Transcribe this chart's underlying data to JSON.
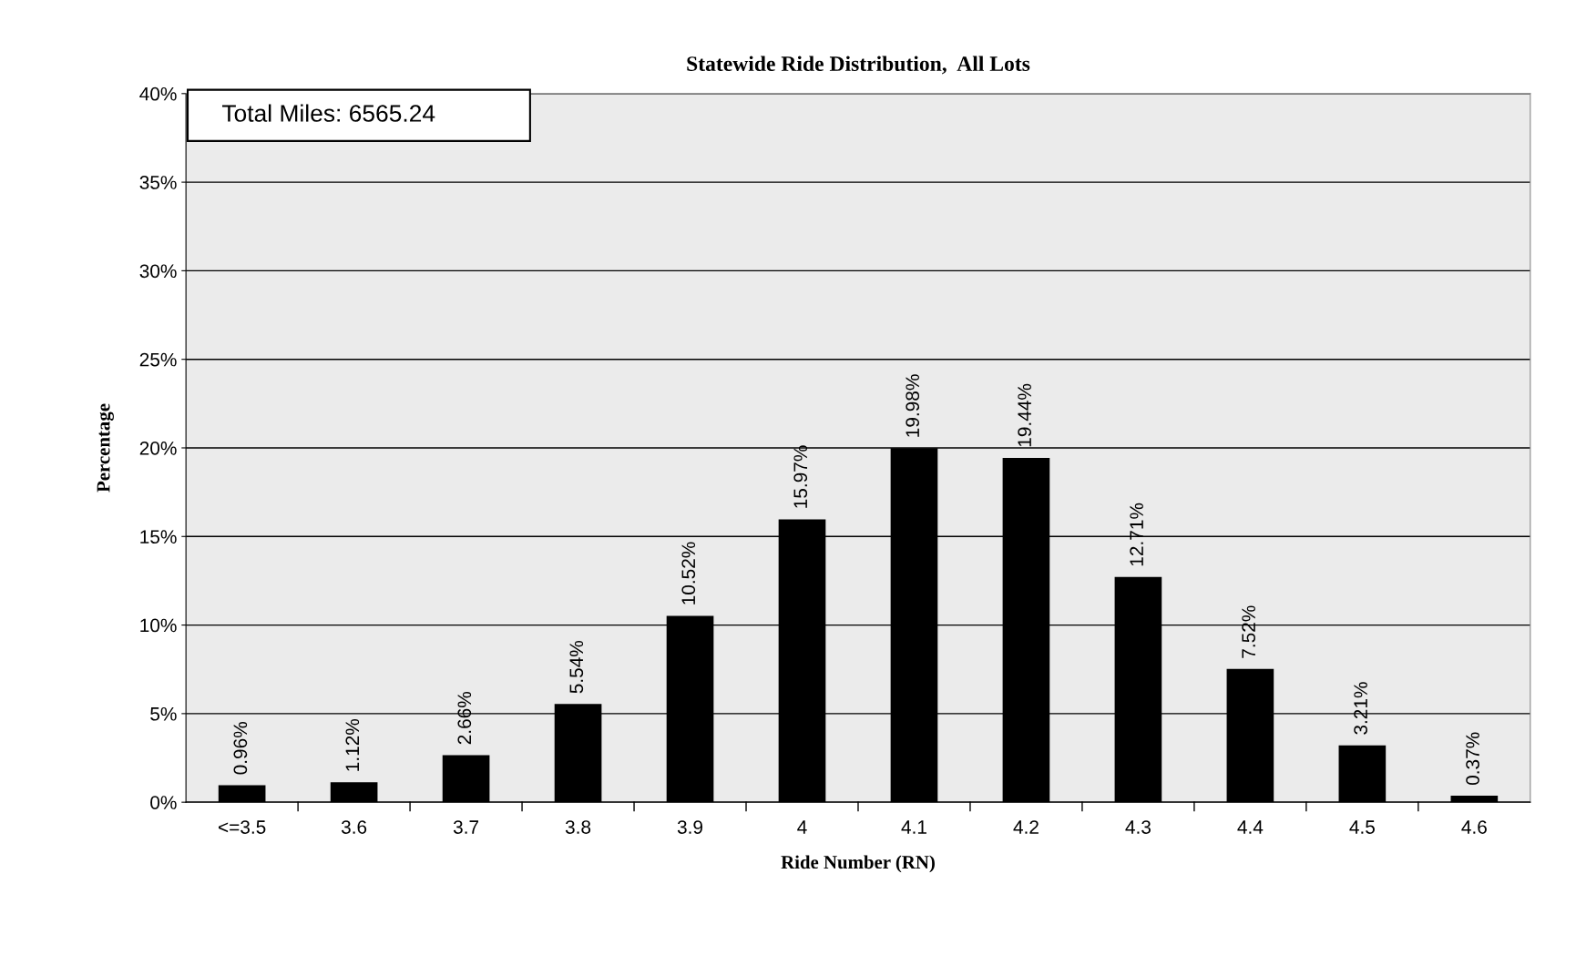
{
  "chart_data": {
    "type": "bar",
    "title": "Statewide Ride Distribution,  All Lots",
    "xlabel": "Ride Number (RN)",
    "ylabel": "Percentage",
    "categories": [
      "<=3.5",
      "3.6",
      "3.7",
      "3.8",
      "3.9",
      "4",
      "4.1",
      "4.2",
      "4.3",
      "4.4",
      "4.5",
      "4.6"
    ],
    "values": [
      0.96,
      1.12,
      2.66,
      5.54,
      10.52,
      15.97,
      19.98,
      19.44,
      12.71,
      7.52,
      3.21,
      0.37
    ],
    "value_labels": [
      "0.96%",
      "1.12%",
      "2.66%",
      "5.54%",
      "10.52%",
      "15.97%",
      "19.98%",
      "19.44%",
      "12.71%",
      "7.52%",
      "3.21%",
      "0.37%"
    ],
    "color": "#000000",
    "ylim": [
      0,
      40
    ],
    "yticks": [
      {
        "value": 0,
        "label": "0%"
      },
      {
        "value": 5,
        "label": "5%"
      },
      {
        "value": 10,
        "label": "10%"
      },
      {
        "value": 15,
        "label": "15%"
      },
      {
        "value": 20,
        "label": "20%"
      },
      {
        "value": 25,
        "label": "25%"
      },
      {
        "value": 30,
        "label": "30%"
      },
      {
        "value": 35,
        "label": "35%"
      },
      {
        "value": 40,
        "label": "40%"
      }
    ],
    "grid": "y",
    "annotations": [
      "Total Miles: 6565.24"
    ]
  }
}
